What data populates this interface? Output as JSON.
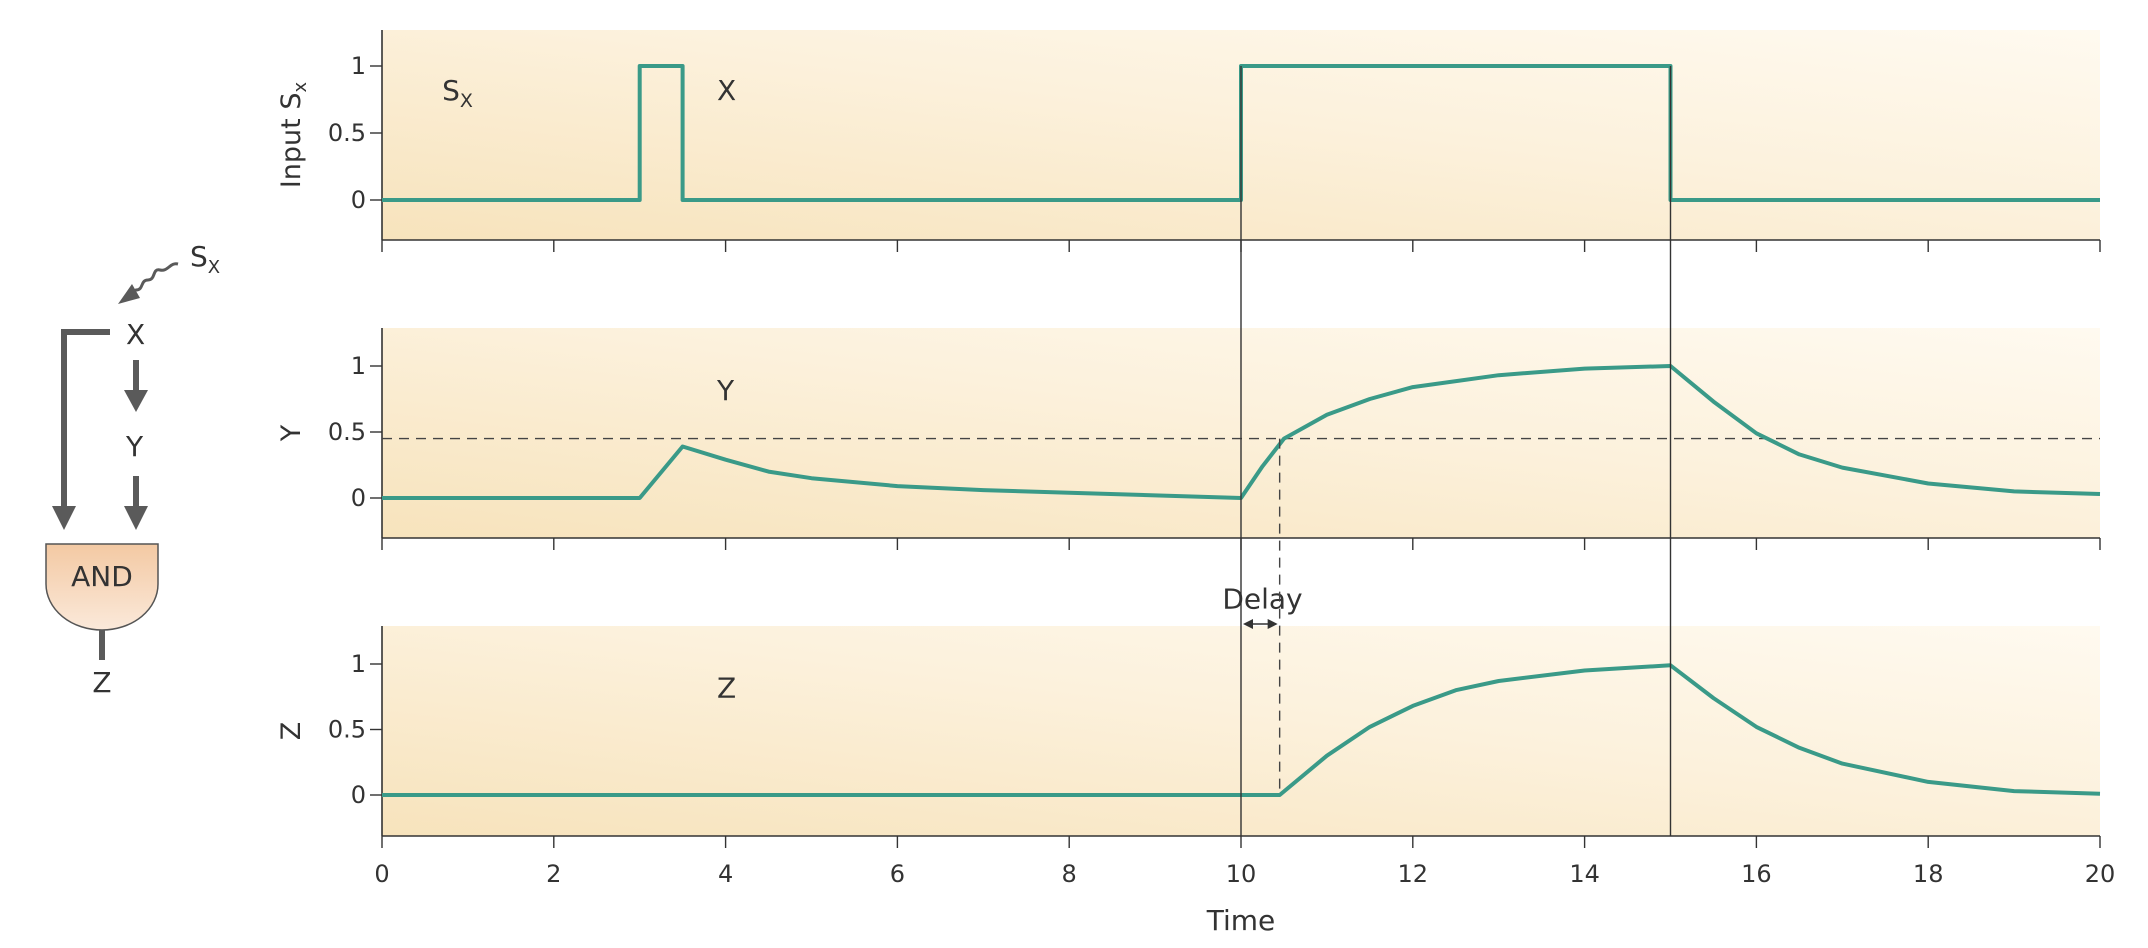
{
  "chart_data": {
    "type": "line",
    "xlabel": "Time",
    "xlim": [
      0,
      20
    ],
    "xticks": [
      0,
      2,
      4,
      6,
      8,
      10,
      12,
      14,
      16,
      18,
      20
    ],
    "panels": [
      {
        "ylabel": "Input S",
        "ylabel_sub": "x",
        "ylim": [
          -0.3,
          1.3
        ],
        "yticks": [
          "0",
          "0.5",
          "1"
        ],
        "annotations": [
          {
            "text": "S",
            "sub": "X",
            "x": 0.7,
            "y": 0.82
          },
          {
            "text": "X",
            "x": 3.9,
            "y": 0.82
          }
        ],
        "series": [
          {
            "x": [
              0,
              3,
              3,
              3.5,
              3.5,
              10,
              10,
              15,
              15,
              20
            ],
            "y": [
              0,
              0,
              1,
              1,
              0,
              0,
              1,
              1,
              0,
              0
            ]
          }
        ]
      },
      {
        "ylabel": "Y",
        "ylim": [
          -0.3,
          1.3
        ],
        "yticks": [
          "0",
          "0.5",
          "1"
        ],
        "threshold": 0.45,
        "annotations": [
          {
            "text": "Y",
            "x": 3.9,
            "y": 0.82
          }
        ],
        "series": [
          {
            "x": [
              0,
              3,
              3.5,
              4,
              4.5,
              5,
              6,
              7,
              8,
              9,
              10,
              10.25,
              10.5,
              11,
              11.5,
              12,
              13,
              14,
              15,
              15.5,
              16,
              16.5,
              17,
              18,
              19,
              20
            ],
            "y": [
              0,
              0,
              0.39,
              0.29,
              0.2,
              0.15,
              0.09,
              0.06,
              0.04,
              0.02,
              0,
              0.24,
              0.45,
              0.63,
              0.75,
              0.84,
              0.93,
              0.98,
              1,
              0.73,
              0.49,
              0.33,
              0.23,
              0.11,
              0.05,
              0.03
            ]
          }
        ]
      },
      {
        "ylabel": "Z",
        "ylim": [
          -0.3,
          1.3
        ],
        "yticks": [
          "0",
          "0.5",
          "1"
        ],
        "annotations": [
          {
            "text": "Z",
            "x": 3.9,
            "y": 0.82
          },
          {
            "text": "Delay",
            "x": 10.25,
            "y": 1.5
          }
        ],
        "series": [
          {
            "x": [
              0,
              10.45,
              11,
              11.5,
              12,
              12.5,
              13,
              14,
              15,
              15.5,
              16,
              16.5,
              17,
              18,
              19,
              20
            ],
            "y": [
              0,
              0,
              0.3,
              0.52,
              0.68,
              0.8,
              0.87,
              0.95,
              0.99,
              0.74,
              0.52,
              0.36,
              0.24,
              0.1,
              0.03,
              0.01
            ]
          }
        ]
      }
    ],
    "event_lines_x": [
      10,
      15
    ],
    "delay_x": [
      10,
      10.45
    ]
  },
  "diagram": {
    "signal": "S",
    "signal_sub": "X",
    "node_x": "X",
    "node_y": "Y",
    "gate": "AND",
    "output": "Z"
  },
  "colors": {
    "trace": "#3a9a88",
    "panel_bg_dark": "#f7e3bc",
    "panel_bg_light": "#fffaf0",
    "gate_fill_top": "#f3c9a3",
    "gate_fill_bottom": "#fbe9da"
  }
}
